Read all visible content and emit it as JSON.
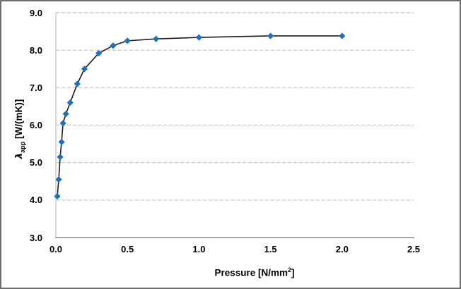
{
  "window": {
    "background": "#ffffff",
    "border_color": "#6e6e6e"
  },
  "chart_data": {
    "type": "line",
    "title": "",
    "xlabel": "Pressure [N/mm²]",
    "ylabel": "λ_app [W/(mK)]",
    "xlabel_parts": {
      "base": "Pressure [N/mm",
      "sup": "2",
      "close": "]"
    },
    "ylabel_parts": {
      "lambda": "λ",
      "sub": "app",
      "rest": " [W/(mK)]"
    },
    "x": [
      0.01,
      0.02,
      0.03,
      0.04,
      0.05,
      0.07,
      0.1,
      0.15,
      0.2,
      0.3,
      0.4,
      0.5,
      0.7,
      1.0,
      1.5,
      2.0
    ],
    "y": [
      4.1,
      4.55,
      5.15,
      5.55,
      6.05,
      6.3,
      6.6,
      7.1,
      7.5,
      7.92,
      8.12,
      8.25,
      8.3,
      8.34,
      8.38,
      8.38
    ],
    "xlim": [
      0,
      2.5
    ],
    "ylim": [
      3.0,
      9.0
    ],
    "x_ticks": [
      "0.0",
      "0.5",
      "1.0",
      "1.5",
      "2.0",
      "2.5"
    ],
    "x_tick_values": [
      0,
      0.5,
      1.0,
      1.5,
      2.0,
      2.5
    ],
    "y_ticks": [
      "3.0",
      "4.0",
      "5.0",
      "6.0",
      "7.0",
      "8.0",
      "9.0"
    ],
    "y_tick_values": [
      3,
      4,
      5,
      6,
      7,
      8,
      9
    ],
    "grid": "horizontal-dashed",
    "legend_position": "none",
    "marker": "diamond",
    "colors": {
      "marker": "#1F70C1",
      "series_line": "#1c1c1c",
      "gridline": "#c2c2c2",
      "axis_x": "#a6a6a6",
      "axis_y": "#c0c0c0",
      "text": "#000000"
    }
  }
}
